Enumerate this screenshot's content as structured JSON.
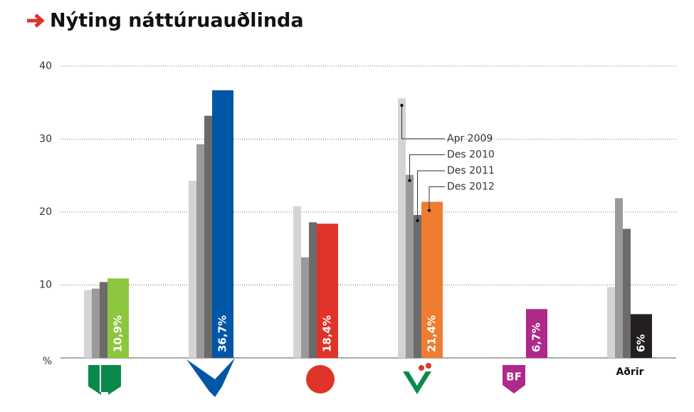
{
  "chart_data": {
    "type": "bar",
    "title": "Nýting náttúruauðlinda",
    "categories": [
      null,
      null,
      null,
      null,
      null,
      "Aðrir"
    ],
    "series": [
      {
        "name": "Apr 2009",
        "color": "#d4d4d4",
        "values": [
          9.3,
          24.3,
          20.8,
          35.6,
          null,
          9.7
        ]
      },
      {
        "name": "Des 2010",
        "color": "#9a9a9a",
        "values": [
          9.5,
          29.3,
          13.8,
          25.1,
          null,
          21.9
        ]
      },
      {
        "name": "Des 2011",
        "color": "#6b6b6b",
        "values": [
          10.4,
          33.2,
          18.6,
          19.6,
          null,
          17.7
        ]
      },
      {
        "name": "Des 2012",
        "colors": [
          "#8dc63f",
          "#0057a8",
          "#e0342a",
          "#ee7d31",
          "#b0288a",
          "#231f20"
        ],
        "values": [
          10.9,
          36.7,
          18.4,
          21.4,
          6.7,
          6
        ],
        "value_labels": [
          "10,9%",
          "36,7%",
          "18,4%",
          "21,4%",
          "6,7%",
          "6%"
        ]
      }
    ],
    "ylim": [
      0,
      40
    ],
    "yticks": [
      {
        "value": 0,
        "label": "%"
      },
      10,
      20,
      30,
      40
    ],
    "grid": true
  }
}
